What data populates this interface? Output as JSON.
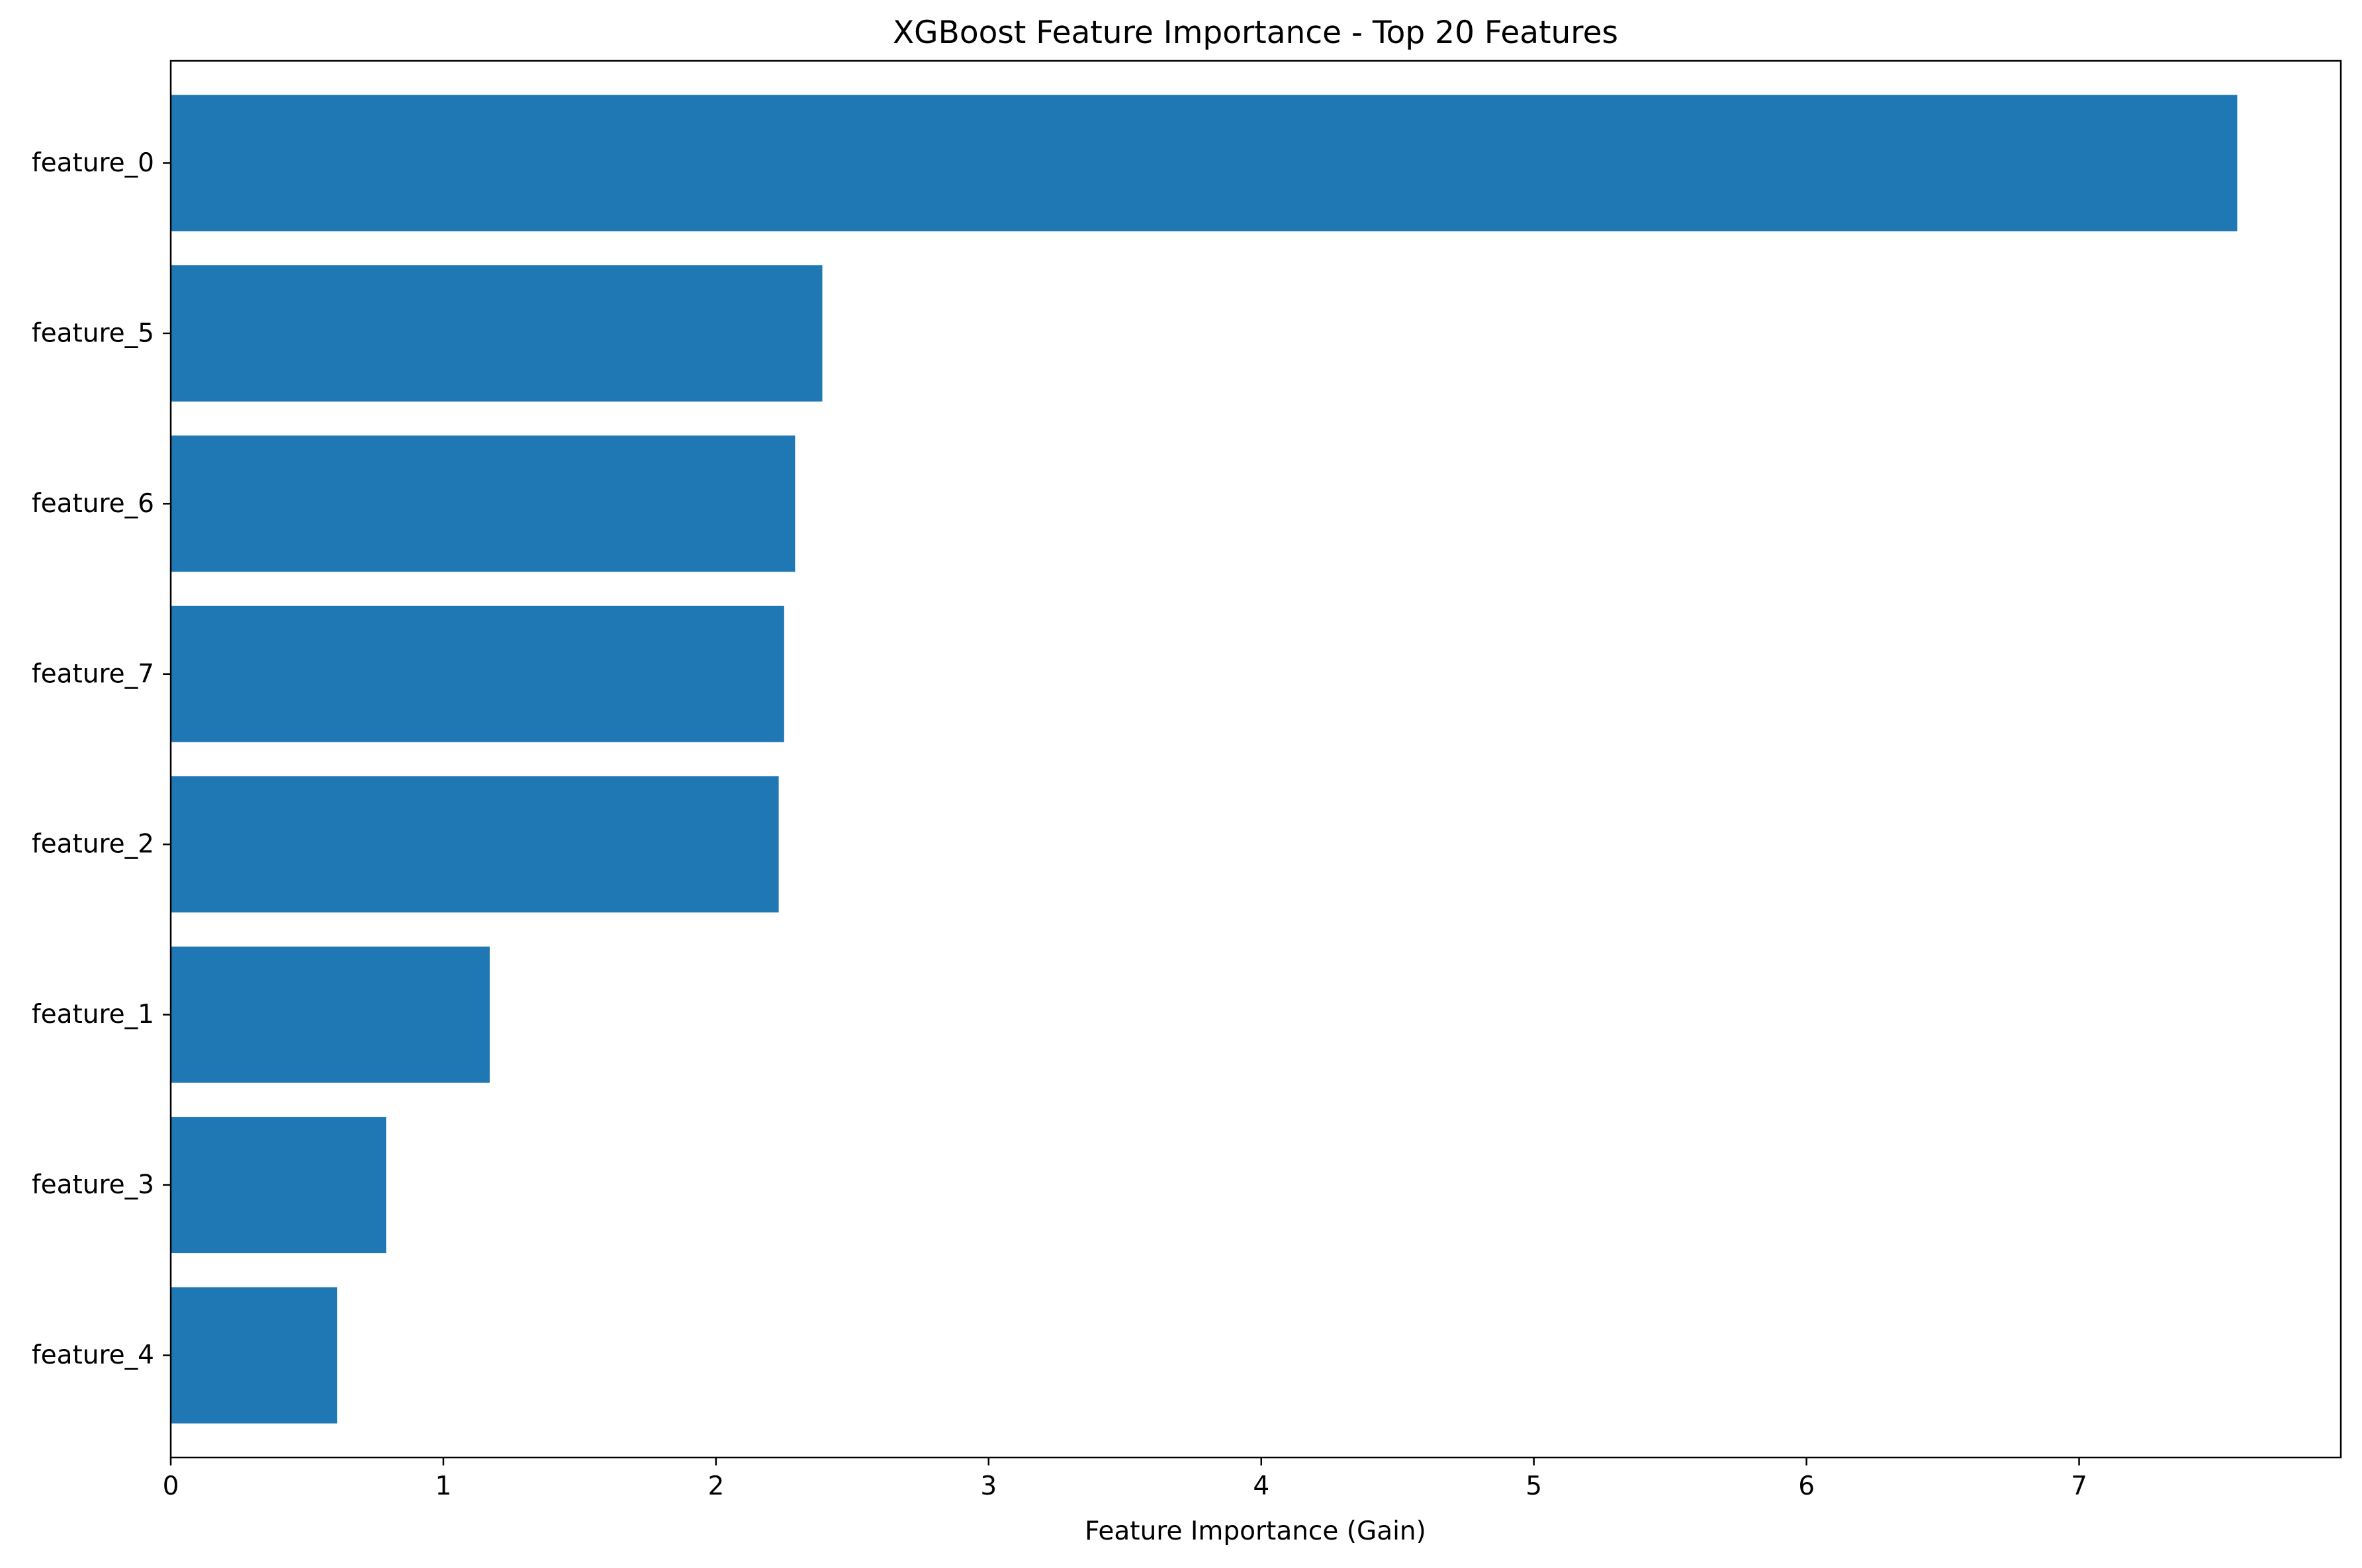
{
  "chart_data": {
    "type": "bar",
    "orientation": "horizontal",
    "title": "XGBoost Feature Importance - Top 20 Features",
    "xlabel": "Feature Importance (Gain)",
    "ylabel": "",
    "categories": [
      "feature_0",
      "feature_5",
      "feature_6",
      "feature_7",
      "feature_2",
      "feature_1",
      "feature_3",
      "feature_4"
    ],
    "values": [
      7.58,
      2.39,
      2.29,
      2.25,
      2.23,
      1.17,
      0.79,
      0.61
    ],
    "xlim": [
      0,
      7.96
    ],
    "xticks": [
      0,
      1,
      2,
      3,
      4,
      5,
      6,
      7
    ],
    "grid": false,
    "legend": "none",
    "bar_color": "#1f77b4"
  }
}
